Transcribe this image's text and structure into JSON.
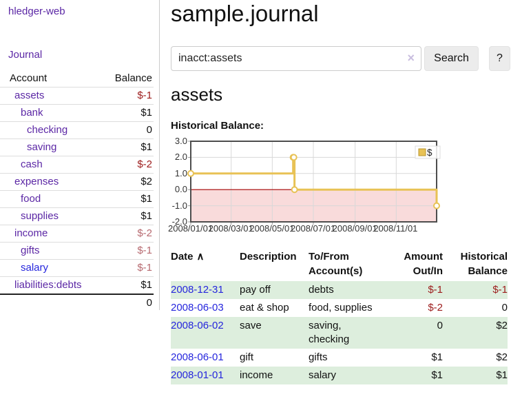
{
  "app": {
    "title": "hledger-web"
  },
  "sidebar": {
    "journal_link": "Journal",
    "headers": {
      "account": "Account",
      "balance": "Balance"
    },
    "accounts": [
      {
        "name": "assets",
        "balance": "$-1",
        "indent": 1,
        "bold": true,
        "negative": true,
        "unvisited": false
      },
      {
        "name": "bank",
        "balance": "$1",
        "indent": 2,
        "bold": true,
        "negative": false,
        "unvisited": false
      },
      {
        "name": "checking",
        "balance": "0",
        "indent": 3,
        "bold": true,
        "negative": false,
        "unvisited": false
      },
      {
        "name": "saving",
        "balance": "$1",
        "indent": 3,
        "bold": true,
        "negative": false,
        "unvisited": false
      },
      {
        "name": "cash",
        "balance": "$-2",
        "indent": 2,
        "bold": true,
        "negative": true,
        "unvisited": false
      },
      {
        "name": "expenses",
        "balance": "$2",
        "indent": 1,
        "bold": false,
        "negative": false,
        "unvisited": false
      },
      {
        "name": "food",
        "balance": "$1",
        "indent": 2,
        "bold": false,
        "negative": false,
        "unvisited": false
      },
      {
        "name": "supplies",
        "balance": "$1",
        "indent": 2,
        "bold": false,
        "negative": false,
        "unvisited": false
      },
      {
        "name": "income",
        "balance": "$-2",
        "indent": 1,
        "bold": false,
        "negative": true,
        "unvisited": false
      },
      {
        "name": "gifts",
        "balance": "$-1",
        "indent": 2,
        "bold": false,
        "negative": true,
        "unvisited": false
      },
      {
        "name": "salary",
        "balance": "$-1",
        "indent": 2,
        "bold": false,
        "negative": true,
        "unvisited": true
      },
      {
        "name": "liabilities:debts",
        "balance": "$1",
        "indent": 1,
        "bold": false,
        "negative": false,
        "unvisited": false
      }
    ],
    "total": "0"
  },
  "header": {
    "title": "sample.journal"
  },
  "search": {
    "value": "inacct:assets",
    "clear_icon": "×",
    "button_label": "Search",
    "help_label": "?"
  },
  "account_page": {
    "heading": "assets",
    "chart_label": "Historical Balance:"
  },
  "chart_data": {
    "type": "line",
    "step": true,
    "title": "Historical Balance",
    "legend": "$",
    "legend_position": "top-right",
    "grid": true,
    "xrange": [
      "2008-01-01",
      "2008-12-31"
    ],
    "ylim": [
      -2,
      3
    ],
    "yticks": [
      "3.0",
      "2.0",
      "1.0",
      "0.0",
      "-1.0",
      "-2.0"
    ],
    "xticks": [
      "2008/01/01",
      "2008/03/01",
      "2008/05/01",
      "2008/07/01",
      "2008/09/01",
      "2008/11/01"
    ],
    "series": [
      {
        "name": "$",
        "points": [
          [
            "2008-01-01",
            1
          ],
          [
            "2008-06-01",
            2
          ],
          [
            "2008-06-02",
            2
          ],
          [
            "2008-06-03",
            0
          ],
          [
            "2008-12-31",
            -1
          ]
        ]
      }
    ],
    "colors": {
      "line": "#e8c255",
      "marker_fill": "#ffffff",
      "negative_region": "#f9dbdb",
      "zero_line": "#a40000",
      "grid": "#d8d8d8",
      "border": "#4d4d4d"
    }
  },
  "register": {
    "headers": {
      "date": "Date",
      "sort_icon": "∧",
      "description": "Description",
      "accounts": "To/From Account(s)",
      "amount": "Amount Out/In",
      "balance": "Historical Balance"
    },
    "rows": [
      {
        "date": "2008-12-31",
        "description": "pay off",
        "accounts": "debts",
        "amount": "$-1",
        "balance": "$-1",
        "amount_negative": true,
        "balance_negative": true
      },
      {
        "date": "2008-06-03",
        "description": "eat & shop",
        "accounts": "food, supplies",
        "amount": "$-2",
        "balance": "0",
        "amount_negative": true,
        "balance_negative": false
      },
      {
        "date": "2008-06-02",
        "description": "save",
        "accounts": "saving,\nchecking",
        "amount": "0",
        "balance": "$2",
        "amount_negative": false,
        "balance_negative": false
      },
      {
        "date": "2008-06-01",
        "description": "gift",
        "accounts": "gifts",
        "amount": "$1",
        "balance": "$2",
        "amount_negative": false,
        "balance_negative": false
      },
      {
        "date": "2008-01-01",
        "description": "income",
        "accounts": "salary",
        "amount": "$1",
        "balance": "$1",
        "amount_negative": false,
        "balance_negative": false
      }
    ]
  }
}
